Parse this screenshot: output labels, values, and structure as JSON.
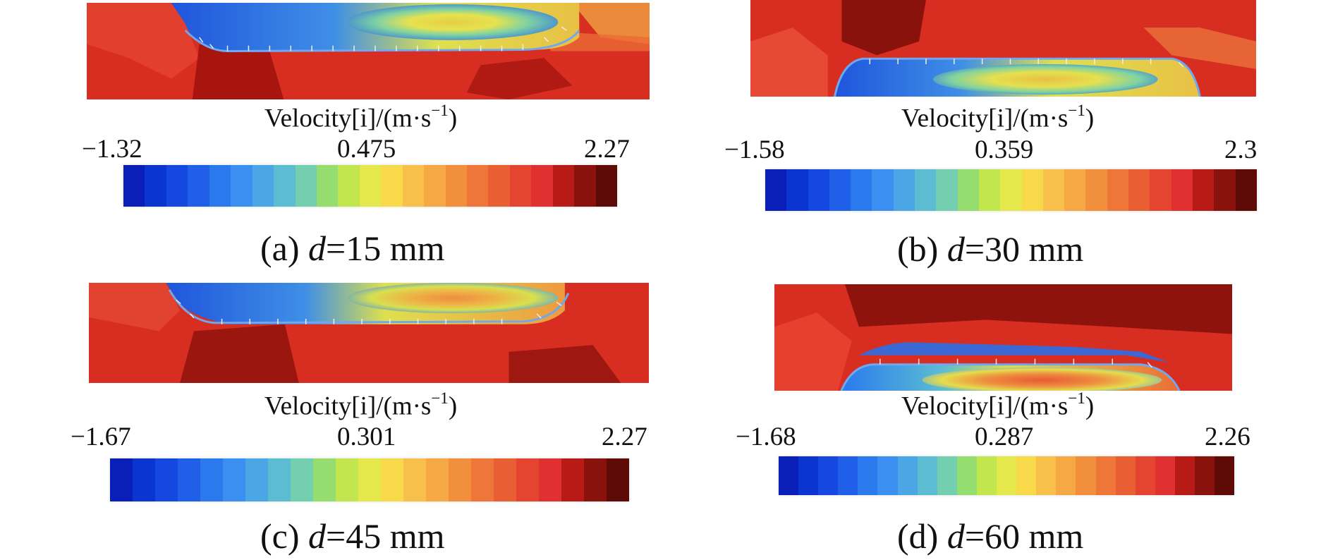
{
  "unit_label": {
    "text": "Velocity[i]/(m·s",
    "exp": "−1",
    "close": ")"
  },
  "colormap": [
    "#0a1fb8",
    "#0b35d0",
    "#1448e0",
    "#2060e8",
    "#2a7aee",
    "#3a8ff0",
    "#4aa6e4",
    "#5cbcd2",
    "#74cfb0",
    "#96dd70",
    "#c2e64e",
    "#e5e84a",
    "#f7d94a",
    "#f8c04a",
    "#f6a844",
    "#f28f3c",
    "#ee7638",
    "#ea5e34",
    "#e54431",
    "#e03030",
    "#b81a16",
    "#8a120c",
    "#5e0a06"
  ],
  "panels": [
    {
      "label": "(a) ",
      "var": "d",
      "value": "=15 mm",
      "min_label": "−1.32",
      "mid_label": "0.475",
      "max_label": "2.27"
    },
    {
      "label": "(b) ",
      "var": "d",
      "value": "=30 mm",
      "min_label": "−1.58",
      "mid_label": "0.359",
      "max_label": "2.3"
    },
    {
      "label": "(c) ",
      "var": "d",
      "value": "=45 mm",
      "min_label": "−1.67",
      "mid_label": "0.301",
      "max_label": "2.27"
    },
    {
      "label": "(d) ",
      "var": "d",
      "value": "=60 mm",
      "min_label": "−1.68",
      "mid_label": "0.287",
      "max_label": "2.26"
    }
  ]
}
